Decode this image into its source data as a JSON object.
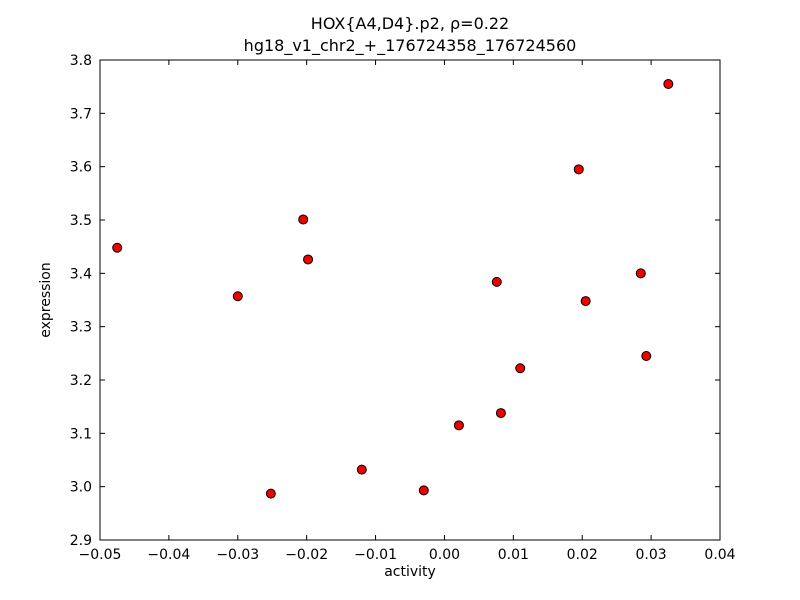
{
  "chart_data": {
    "type": "scatter",
    "title_line1": "HOX{A4,D4}.p2, ρ=0.22",
    "title_line2": "hg18_v1_chr2_+_176724358_176724560",
    "xlabel": "activity",
    "ylabel": "expression",
    "xlim": [
      -0.05,
      0.04
    ],
    "ylim": [
      2.9,
      3.8
    ],
    "x_ticks": [
      -0.05,
      -0.04,
      -0.03,
      -0.02,
      -0.01,
      0.0,
      0.01,
      0.02,
      0.03,
      0.04
    ],
    "x_tick_labels": [
      "−0.05",
      "−0.04",
      "−0.03",
      "−0.02",
      "−0.01",
      "0.00",
      "0.01",
      "0.02",
      "0.03",
      "0.04"
    ],
    "y_ticks": [
      2.9,
      3.0,
      3.1,
      3.2,
      3.3,
      3.4,
      3.5,
      3.6,
      3.7,
      3.8
    ],
    "y_tick_labels": [
      "2.9",
      "3.0",
      "3.1",
      "3.2",
      "3.3",
      "3.4",
      "3.5",
      "3.6",
      "3.7",
      "3.8"
    ],
    "grid": false,
    "legend": null,
    "marker": {
      "shape": "circle",
      "face_color": "#f00000",
      "edge_color": "#000000",
      "radius": 4.5
    },
    "points": [
      [
        -0.0475,
        3.448
      ],
      [
        -0.03,
        3.357
      ],
      [
        -0.0252,
        2.987
      ],
      [
        -0.0205,
        3.501
      ],
      [
        -0.0198,
        3.426
      ],
      [
        -0.012,
        3.032
      ],
      [
        -0.003,
        2.993
      ],
      [
        0.0021,
        3.115
      ],
      [
        0.0076,
        3.384
      ],
      [
        0.0082,
        3.138
      ],
      [
        0.011,
        3.222
      ],
      [
        0.0195,
        3.595
      ],
      [
        0.0205,
        3.348
      ],
      [
        0.0285,
        3.4
      ],
      [
        0.0293,
        3.245
      ],
      [
        0.0325,
        3.755
      ]
    ]
  }
}
